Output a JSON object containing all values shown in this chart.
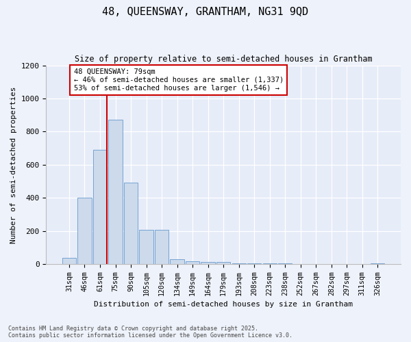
{
  "title_line1": "48, QUEENSWAY, GRANTHAM, NG31 9QD",
  "title_line2": "Size of property relative to semi-detached houses in Grantham",
  "xlabel": "Distribution of semi-detached houses by size in Grantham",
  "ylabel": "Number of semi-detached properties",
  "categories": [
    "31sqm",
    "46sqm",
    "61sqm",
    "75sqm",
    "90sqm",
    "105sqm",
    "120sqm",
    "134sqm",
    "149sqm",
    "164sqm",
    "179sqm",
    "193sqm",
    "208sqm",
    "223sqm",
    "238sqm",
    "252sqm",
    "267sqm",
    "282sqm",
    "297sqm",
    "311sqm",
    "326sqm"
  ],
  "values": [
    35,
    400,
    690,
    870,
    490,
    205,
    205,
    30,
    15,
    13,
    13,
    5,
    5,
    3,
    2,
    1,
    1,
    1,
    1,
    0,
    2
  ],
  "bar_color": "#ccdaec",
  "bar_edge_color": "#6699cc",
  "vline_x_index": 2,
  "vline_color": "#cc0000",
  "annotation_text": "48 QUEENSWAY: 79sqm\n← 46% of semi-detached houses are smaller (1,337)\n53% of semi-detached houses are larger (1,546) →",
  "annotation_box_color": "#ffffff",
  "annotation_box_edge": "#cc0000",
  "ylim": [
    0,
    1200
  ],
  "yticks": [
    0,
    200,
    400,
    600,
    800,
    1000,
    1200
  ],
  "footnote": "Contains HM Land Registry data © Crown copyright and database right 2025.\nContains public sector information licensed under the Open Government Licence v3.0.",
  "bg_color": "#eef2fa",
  "plot_bg_color": "#e6ecf8"
}
